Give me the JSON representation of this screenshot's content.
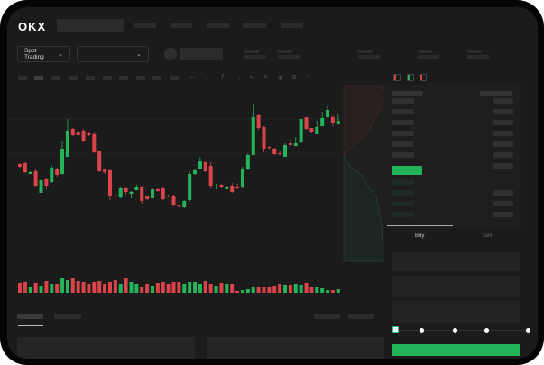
{
  "header": {
    "logo": "OKX"
  },
  "toolbar": {
    "market_select": "Spot Trading",
    "pair_select": ""
  },
  "order_form": {
    "tabs": [
      "Buy",
      "Sell"
    ],
    "active_tab": "Buy",
    "leverage_steps": 5,
    "submit_color": "#25b35a"
  },
  "colors": {
    "up": "#25b35a",
    "down": "#d9444a",
    "background": "#1b1b1b"
  },
  "icons": [
    "chevron-down-icon",
    "orderbook-both-icon",
    "orderbook-bids-icon",
    "orderbook-asks-icon",
    "camera-icon",
    "settings-icon",
    "fullscreen-icon"
  ],
  "candles": [
    [
      118,
      115,
      119,
      114
    ],
    [
      119,
      109,
      120,
      108
    ],
    [
      107,
      109,
      110,
      107
    ],
    [
      110,
      94,
      113,
      92
    ],
    [
      86,
      100,
      101,
      83
    ],
    [
      101,
      94,
      102,
      90
    ],
    [
      98,
      114,
      116,
      97
    ],
    [
      113,
      106,
      114,
      104
    ],
    [
      107,
      135,
      143,
      106
    ],
    [
      126,
      155,
      168,
      126
    ],
    [
      157,
      150,
      158,
      149
    ],
    [
      154,
      150,
      156,
      148
    ],
    [
      155,
      144,
      157,
      142
    ],
    [
      152,
      150,
      153,
      149
    ],
    [
      151,
      131,
      153,
      130
    ],
    [
      132,
      110,
      133,
      109
    ],
    [
      112,
      109,
      113,
      107
    ],
    [
      111,
      83,
      112,
      78
    ],
    [
      83,
      82,
      85,
      81
    ],
    [
      81,
      91,
      92,
      80
    ],
    [
      91,
      87,
      93,
      84
    ],
    [
      85,
      87,
      88,
      80
    ],
    [
      89,
      93,
      95,
      89
    ],
    [
      93,
      77,
      94,
      74
    ],
    [
      82,
      79,
      83,
      78
    ],
    [
      80,
      90,
      91,
      80
    ],
    [
      90,
      88,
      91,
      87
    ],
    [
      91,
      79,
      92,
      78
    ],
    [
      83,
      82,
      84,
      81
    ],
    [
      82,
      72,
      84,
      71
    ],
    [
      72,
      71,
      73,
      70
    ],
    [
      70,
      77,
      78,
      69
    ],
    [
      78,
      107,
      110,
      76
    ],
    [
      107,
      111,
      112,
      106
    ],
    [
      112,
      121,
      126,
      112
    ],
    [
      120,
      110,
      121,
      109
    ],
    [
      116,
      94,
      120,
      91
    ],
    [
      92,
      93,
      96,
      90
    ],
    [
      95,
      92,
      96,
      91
    ],
    [
      90,
      93,
      94,
      90
    ],
    [
      94,
      87,
      97,
      86
    ],
    [
      92,
      91,
      96,
      90
    ],
    [
      92,
      113,
      115,
      91
    ],
    [
      112,
      128,
      130,
      111
    ],
    [
      128,
      170,
      185,
      128
    ],
    [
      172,
      158,
      174,
      156
    ],
    [
      159,
      135,
      160,
      131
    ],
    [
      137,
      136,
      138,
      134
    ],
    [
      135,
      129,
      136,
      128
    ],
    [
      130,
      129,
      132,
      128
    ],
    [
      126,
      139,
      141,
      126
    ],
    [
      141,
      139,
      146,
      139
    ],
    [
      138,
      141,
      148,
      138
    ],
    [
      142,
      168,
      168,
      141
    ],
    [
      170,
      157,
      170,
      156
    ],
    [
      158,
      153,
      158,
      152
    ],
    [
      151,
      159,
      166,
      151
    ],
    [
      160,
      169,
      176,
      160
    ],
    [
      170,
      178,
      182,
      170
    ],
    [
      170,
      164,
      172,
      160
    ],
    [
      162,
      166,
      173,
      162
    ]
  ],
  "volumes": [
    11,
    12,
    7,
    11,
    8,
    13,
    10,
    10,
    17,
    14,
    16,
    13,
    12,
    10,
    12,
    13,
    10,
    12,
    14,
    10,
    16,
    12,
    10,
    7,
    10,
    8,
    11,
    12,
    10,
    12,
    12,
    10,
    12,
    12,
    10,
    13,
    10,
    8,
    11,
    10,
    10,
    2,
    3,
    4,
    7,
    7,
    7,
    6,
    8,
    10,
    9,
    9,
    10,
    9,
    11,
    7,
    7,
    5,
    3,
    3,
    4
  ]
}
